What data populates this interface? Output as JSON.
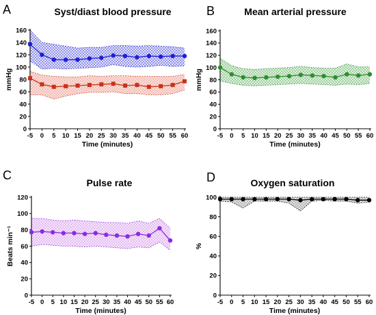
{
  "figure": {
    "panel_letters": [
      "A",
      "B",
      "C",
      "D"
    ]
  },
  "colors": {
    "sys": "#1f1fd6",
    "dia": "#c8331a",
    "map": "#2e8b2e",
    "pulse": "#8a2be2",
    "spo2": "#000000"
  },
  "chart_data": [
    {
      "type": "line",
      "title": "Syst/diast blood pressure",
      "xlabel": "Time (minutes)",
      "ylabel": "mmHg",
      "x": [
        -5,
        0,
        5,
        10,
        15,
        20,
        25,
        30,
        35,
        40,
        45,
        50,
        55,
        60
      ],
      "xlim": [
        -5,
        60
      ],
      "ylim": [
        0,
        160
      ],
      "yticks": [
        0,
        20,
        40,
        60,
        80,
        100,
        120,
        140,
        160
      ],
      "series": [
        {
          "marker": "circle",
          "color": "#1f1fd6",
          "values": [
            137,
            120,
            112,
            112,
            112,
            114,
            115,
            119,
            118,
            116,
            118,
            117,
            118,
            118
          ],
          "upper": [
            160,
            140,
            137,
            134,
            131,
            132,
            132,
            135,
            135,
            134,
            135,
            134,
            133,
            131
          ],
          "lower": [
            110,
            97,
            98,
            97,
            98,
            99,
            100,
            104,
            101,
            100,
            101,
            103,
            101,
            102
          ]
        },
        {
          "marker": "square",
          "color": "#c8331a",
          "values": [
            82,
            72,
            68,
            69,
            70,
            71,
            72,
            73,
            70,
            71,
            68,
            69,
            71,
            77
          ],
          "upper": [
            93,
            87,
            85,
            84,
            84,
            86,
            85,
            86,
            86,
            85,
            85,
            85,
            85,
            88
          ],
          "lower": [
            55,
            55,
            48,
            53,
            57,
            59,
            59,
            60,
            57,
            57,
            55,
            55,
            57,
            63
          ]
        }
      ]
    },
    {
      "type": "line",
      "title": "Mean arterial pressure",
      "xlabel": "Time (minutes)",
      "ylabel": "mmHg",
      "x": [
        -5,
        0,
        5,
        10,
        15,
        20,
        25,
        30,
        35,
        40,
        45,
        50,
        55,
        60
      ],
      "xlim": [
        -5,
        60
      ],
      "ylim": [
        0,
        160
      ],
      "yticks": [
        0,
        20,
        40,
        60,
        80,
        100,
        120,
        140,
        160
      ],
      "series": [
        {
          "marker": "circle",
          "color": "#2e8b2e",
          "values": [
            100,
            89,
            84,
            83,
            84,
            85,
            86,
            88,
            87,
            86,
            84,
            89,
            87,
            89
          ],
          "upper": [
            115,
            103,
            98,
            97,
            98,
            99,
            100,
            102,
            100,
            99,
            99,
            106,
            101,
            101
          ],
          "lower": [
            78,
            74,
            71,
            70,
            71,
            72,
            73,
            74,
            73,
            72,
            71,
            73,
            72,
            74
          ]
        }
      ]
    },
    {
      "type": "line",
      "title": "Pulse rate",
      "xlabel": "Time (minutes)",
      "ylabel": "Beats min⁻¹",
      "x": [
        -5,
        0,
        5,
        10,
        15,
        20,
        25,
        30,
        35,
        40,
        45,
        50,
        55,
        60
      ],
      "xlim": [
        -5,
        60
      ],
      "ylim": [
        0,
        120
      ],
      "yticks": [
        0,
        20,
        40,
        60,
        80,
        100,
        120
      ],
      "series": [
        {
          "marker": "circle",
          "color": "#8a2be2",
          "values": [
            77,
            78,
            77,
            76,
            76,
            75,
            76,
            74,
            73,
            72,
            75,
            73,
            82,
            67
          ],
          "upper": [
            94,
            94,
            92,
            91,
            92,
            91,
            90,
            89,
            89,
            88,
            91,
            88,
            94,
            82
          ],
          "lower": [
            60,
            62,
            61,
            60,
            60,
            59,
            60,
            59,
            58,
            57,
            59,
            58,
            65,
            55
          ]
        }
      ]
    },
    {
      "type": "line",
      "title": "Oxygen saturation",
      "xlabel": "Time (minutes)",
      "ylabel": "%",
      "x": [
        -5,
        0,
        5,
        10,
        15,
        20,
        25,
        30,
        35,
        40,
        45,
        50,
        55,
        60
      ],
      "xlim": [
        -5,
        60
      ],
      "ylim": [
        0,
        100
      ],
      "yticks": [
        0,
        20,
        40,
        60,
        80,
        100
      ],
      "series": [
        {
          "marker": "circle",
          "color": "#000000",
          "values": [
            98,
            98,
            98,
            98,
            98,
            98,
            98,
            97,
            98,
            98,
            98,
            98,
            97,
            97
          ],
          "upper": [
            100,
            100,
            100,
            100,
            100,
            100,
            100,
            100,
            100,
            100,
            100,
            100,
            100,
            100
          ],
          "lower": [
            96,
            95,
            89,
            96,
            96,
            96,
            94,
            86,
            96,
            97,
            96,
            96,
            94,
            95
          ]
        }
      ]
    }
  ]
}
